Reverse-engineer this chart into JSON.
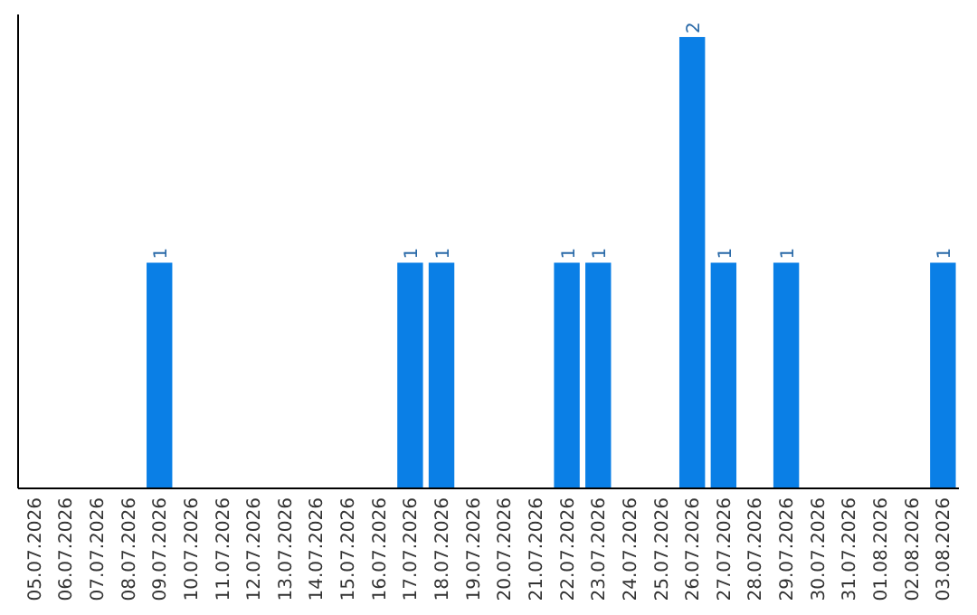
{
  "chart_data": {
    "type": "bar",
    "categories": [
      "05.07.2026",
      "06.07.2026",
      "07.07.2026",
      "08.07.2026",
      "09.07.2026",
      "10.07.2026",
      "11.07.2026",
      "12.07.2026",
      "13.07.2026",
      "14.07.2026",
      "15.07.2026",
      "16.07.2026",
      "17.07.2026",
      "18.07.2026",
      "19.07.2026",
      "20.07.2026",
      "21.07.2026",
      "22.07.2026",
      "23.07.2026",
      "24.07.2026",
      "25.07.2026",
      "26.07.2026",
      "27.07.2026",
      "28.07.2026",
      "29.07.2026",
      "30.07.2026",
      "31.07.2026",
      "01.08.2026",
      "02.08.2026",
      "03.08.2026"
    ],
    "values": [
      0,
      0,
      0,
      0,
      1,
      0,
      0,
      0,
      0,
      0,
      0,
      0,
      1,
      1,
      0,
      0,
      0,
      1,
      1,
      0,
      0,
      2,
      1,
      0,
      1,
      0,
      0,
      0,
      0,
      1
    ],
    "value_labels": [
      null,
      null,
      null,
      null,
      "1",
      null,
      null,
      null,
      null,
      null,
      null,
      null,
      "1",
      "1",
      null,
      null,
      null,
      "1",
      "1",
      null,
      null,
      "2",
      "1",
      null,
      "1",
      null,
      null,
      null,
      null,
      "1"
    ],
    "color": "#0a7fe6",
    "ylim": [
      0,
      2.1
    ],
    "tick_labels": "x"
  }
}
